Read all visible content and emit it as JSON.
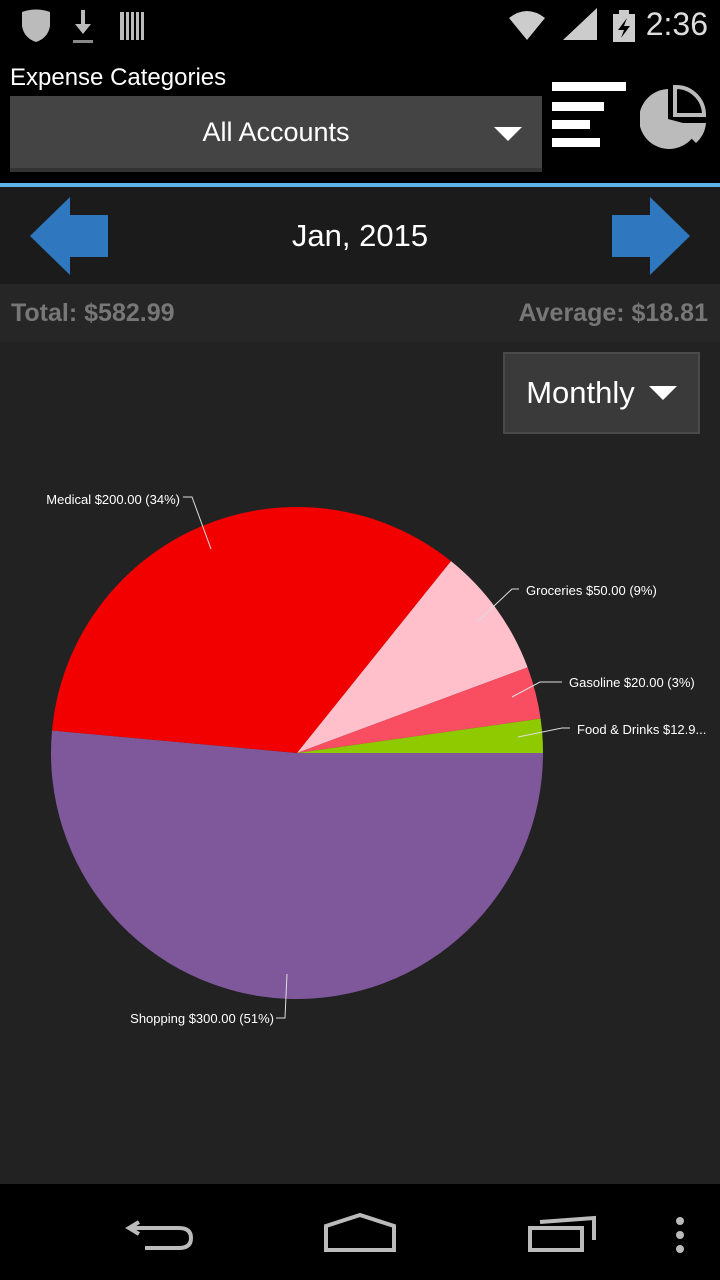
{
  "status_bar": {
    "time": "2:36",
    "icons": [
      "shield-icon",
      "download-icon",
      "barcode-icon",
      "wifi-icon",
      "signal-icon",
      "battery-charging-icon"
    ]
  },
  "header": {
    "title": "Expense Categories",
    "account_selector": "All Accounts"
  },
  "nav": {
    "period_label": "Jan, 2015"
  },
  "summary": {
    "total": "Total: $582.99",
    "average": "Average: $18.81"
  },
  "period_selector": "Monthly",
  "chart_data": {
    "type": "pie",
    "slices": [
      {
        "label": "Shopping  $300.00 (51%)",
        "name": "Shopping",
        "value": 300.0,
        "color": "#7f589b"
      },
      {
        "label": "Medical  $200.00 (34%)",
        "name": "Medical",
        "value": 200.0,
        "color": "#f20000"
      },
      {
        "label": "Groceries  $50.00 (9%)",
        "name": "Groceries",
        "value": 50.0,
        "color": "#ffc0cb"
      },
      {
        "label": "Gasoline  $20.00 (3%)",
        "name": "Gasoline",
        "value": 20.0,
        "color": "#f94e62"
      },
      {
        "label": "Food & Drinks  $12.9...",
        "name": "Food & Drinks",
        "value": 12.99,
        "color": "#8fca00"
      }
    ]
  },
  "colors": {
    "accent": "#5cb3e8",
    "arrow": "#2f78bf"
  }
}
